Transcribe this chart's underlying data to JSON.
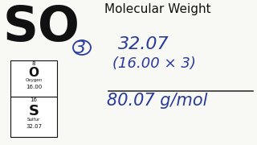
{
  "bg_color": "#f8f8f4",
  "title": "Molecular Weight",
  "so_text": "SO",
  "subscript_3": "3",
  "line1": "32.07",
  "line2": "(16.00 × 3)",
  "line3": "80.07 g/mol",
  "periodic_O_top": "8",
  "periodic_O_symbol": "O",
  "periodic_O_name": "Oxygen",
  "periodic_O_mass": "16.00",
  "periodic_S_top": "16",
  "periodic_S_symbol": "S",
  "periodic_S_name": "Sulfur",
  "periodic_S_mass": "32.07",
  "dark_color": "#111111",
  "blue_color": "#2a3d9e",
  "handwriting_color": "#2a3a9a",
  "line_color": "#333333"
}
